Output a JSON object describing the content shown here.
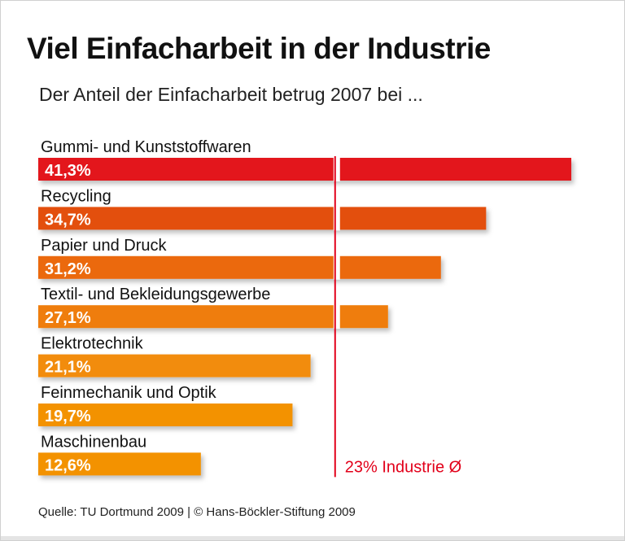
{
  "chart_data": {
    "type": "bar",
    "orientation": "horizontal",
    "title": "Viel Einfacharbeit in der Industrie",
    "subtitle": "Der Anteil der Einfacharbeit betrug 2007 bei ...",
    "categories": [
      "Gummi- und Kunststoffwaren",
      "Recycling",
      "Papier und Druck",
      "Textil- und Bekleidungsgewerbe",
      "Elektrotechnik",
      "Feinmechanik und Optik",
      "Maschinenbau"
    ],
    "values": [
      41.3,
      34.7,
      31.2,
      27.1,
      21.1,
      19.7,
      12.6
    ],
    "value_labels": [
      "41,3%",
      "34,7%",
      "31,2%",
      "27,1%",
      "21,1%",
      "19,7%",
      "12,6%"
    ],
    "colors": [
      "#e3161b",
      "#e3500f",
      "#eb690c",
      "#ef7d0b",
      "#f28c0a",
      "#f39200",
      "#f39200"
    ],
    "reference_line": {
      "value": 23,
      "label": "23% Industrie Ø",
      "color": "#e2001a"
    },
    "xlim": [
      0,
      43
    ],
    "grid": false,
    "source": "Quelle: TU Dortmund 2009 | © Hans-Böckler-Stiftung 2009"
  }
}
